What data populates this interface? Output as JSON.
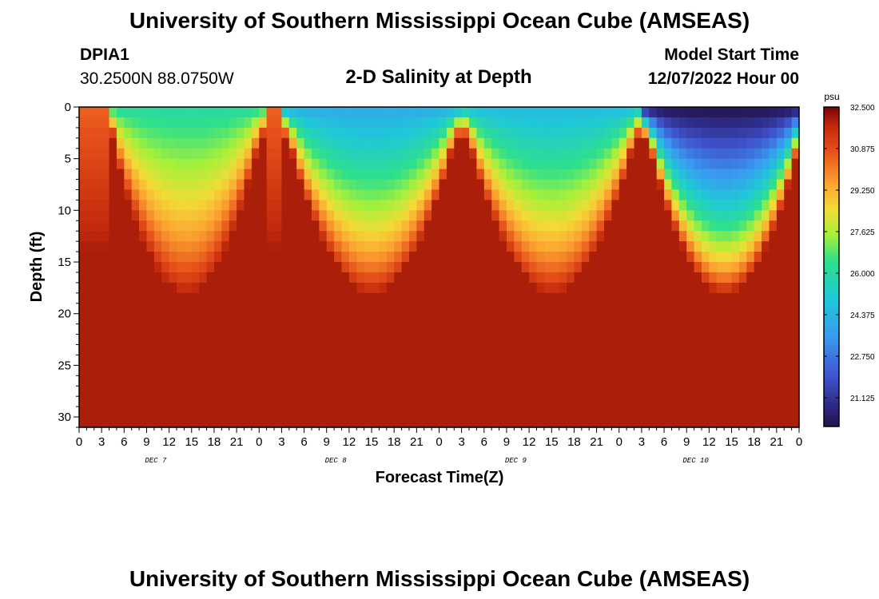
{
  "header": {
    "title": "University of Southern Mississippi Ocean Cube (AMSEAS)",
    "station_id": "DPIA1",
    "station_coords": "30.2500N  88.0750W",
    "plot_title": "2-D Salinity at Depth",
    "model_start_label": "Model Start Time",
    "model_start_value": "12/07/2022 Hour 00"
  },
  "footer": {
    "title": "University of Southern Mississippi Ocean Cube (AMSEAS)"
  },
  "chart_data": {
    "type": "heatmap",
    "title": "2-D Salinity at Depth",
    "xlabel": "Forecast Time(Z)",
    "ylabel": "Depth (ft)",
    "x_hours_range": [
      0,
      96
    ],
    "ylim": [
      0,
      31
    ],
    "y_inverted": true,
    "x_tick_labels": [
      "0",
      "3",
      "6",
      "9",
      "12",
      "15",
      "18",
      "21",
      "0",
      "3",
      "6",
      "9",
      "12",
      "15",
      "18",
      "21",
      "0",
      "3",
      "6",
      "9",
      "12",
      "15",
      "18",
      "21",
      "0",
      "3",
      "6",
      "9",
      "12",
      "15",
      "18",
      "21",
      "0"
    ],
    "y_ticks": [
      0,
      5,
      10,
      15,
      20,
      25,
      30
    ],
    "day_labels": [
      {
        "label": "DEC 7",
        "hour": 10
      },
      {
        "label": "DEC 8",
        "hour": 34
      },
      {
        "label": "DEC 9",
        "hour": 58
      },
      {
        "label": "DEC 10",
        "hour": 82
      }
    ],
    "colorbar": {
      "unit": "psu",
      "min": 20.0,
      "max": 32.5,
      "tick_labels": [
        "32.500",
        "30.875",
        "29.250",
        "27.625",
        "26.000",
        "24.375",
        "22.750",
        "21.125"
      ],
      "tick_values": [
        32.5,
        30.875,
        29.25,
        27.625,
        26.0,
        24.375,
        22.75,
        21.125
      ]
    },
    "field_model": {
      "freshwater_pulses": [
        {
          "start_hour": 4.5,
          "end_hour": 24,
          "surface_salinity": 26.0
        },
        {
          "start_hour": 28,
          "end_hour": 50,
          "surface_salinity": 24.0
        },
        {
          "start_hour": 52,
          "end_hour": 74,
          "surface_salinity": 24.5
        },
        {
          "start_hour": 76,
          "end_hour": 96,
          "surface_salinity": 20.0
        }
      ],
      "deep_salinity": 32.0,
      "surface_salinity_hour0": 30.5
    }
  }
}
